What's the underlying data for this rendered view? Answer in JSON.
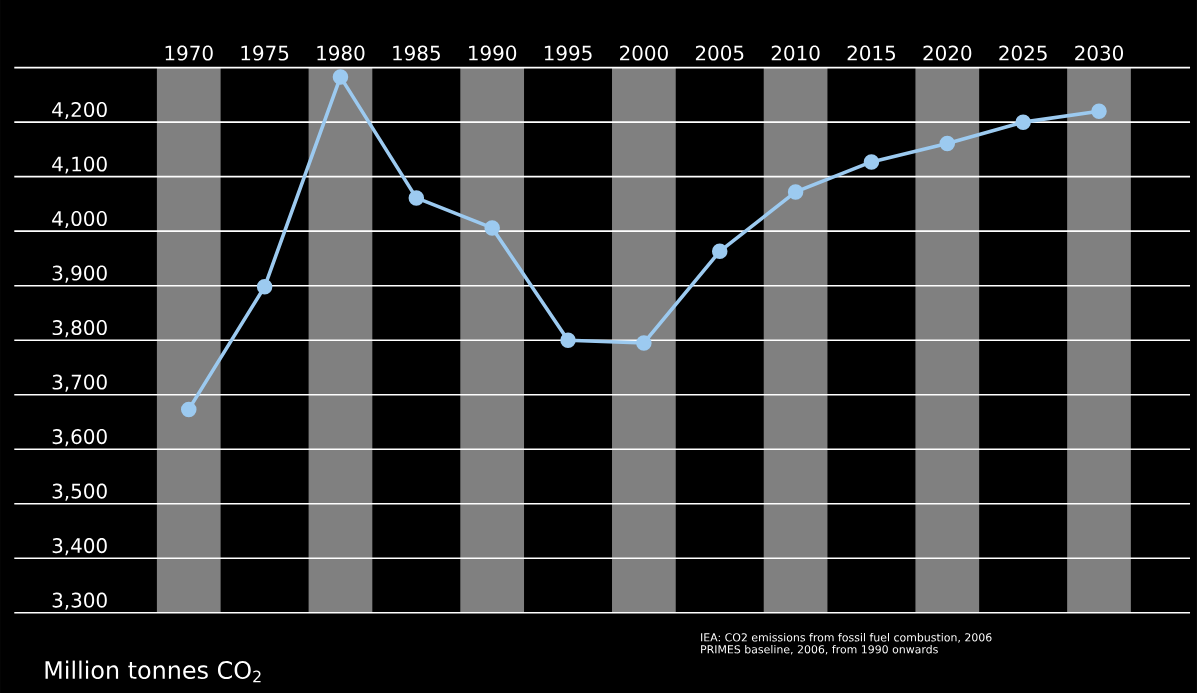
{
  "chart_data": {
    "type": "line",
    "x": [
      1970,
      1975,
      1980,
      1985,
      1990,
      1995,
      2000,
      2005,
      2010,
      2015,
      2020,
      2025,
      2030
    ],
    "series": [
      {
        "color": "#9ccaf0",
        "values": [
          3673,
          3898,
          4283,
          4061,
          4006,
          3800,
          3795,
          3963,
          4072,
          4127,
          4161,
          4200,
          4220
        ]
      }
    ],
    "xlim": [
      1958.5,
      2036
    ],
    "xticks": [
      1970,
      1975,
      1980,
      1985,
      1990,
      1995,
      2000,
      2005,
      2010,
      2015,
      2020,
      2025,
      2030
    ],
    "ylim": [
      3300,
      4300
    ],
    "yticks": [
      {
        "value": 3300,
        "label": "3,300"
      },
      {
        "value": 3400,
        "label": "3,400"
      },
      {
        "value": 3500,
        "label": "3,500"
      },
      {
        "value": 3600,
        "label": "3,600"
      },
      {
        "value": 3700,
        "label": "3,700"
      },
      {
        "value": 3800,
        "label": "3,800"
      },
      {
        "value": 3900,
        "label": "3,900"
      },
      {
        "value": 4000,
        "label": "4,000"
      },
      {
        "value": 4100,
        "label": "4,100"
      },
      {
        "value": 4200,
        "label": "4,200"
      },
      {
        "value": 4300,
        "label": null
      }
    ],
    "grid": "y",
    "marker": "circle",
    "line_style": "solid",
    "bands": [
      {
        "axis": "x",
        "from": 1967.9,
        "to": 1972.1,
        "color": "#808080"
      },
      {
        "axis": "x",
        "from": 1977.9,
        "to": 1982.1,
        "color": "#808080"
      },
      {
        "axis": "x",
        "from": 1987.9,
        "to": 1992.1,
        "color": "#808080"
      },
      {
        "axis": "x",
        "from": 1997.9,
        "to": 2002.1,
        "color": "#808080"
      },
      {
        "axis": "x",
        "from": 2007.9,
        "to": 2012.1,
        "color": "#808080"
      },
      {
        "axis": "x",
        "from": 2017.9,
        "to": 2022.1,
        "color": "#808080"
      },
      {
        "axis": "x",
        "from": 2027.9,
        "to": 2032.1,
        "color": "#808080"
      }
    ],
    "annotations": [
      "Million tonnes CO$_{2}$",
      "IEA: CO2 emissions from fossil fuel combustion, 2006",
      "PRIMES baseline, 2006, from 1990 onwards"
    ]
  }
}
